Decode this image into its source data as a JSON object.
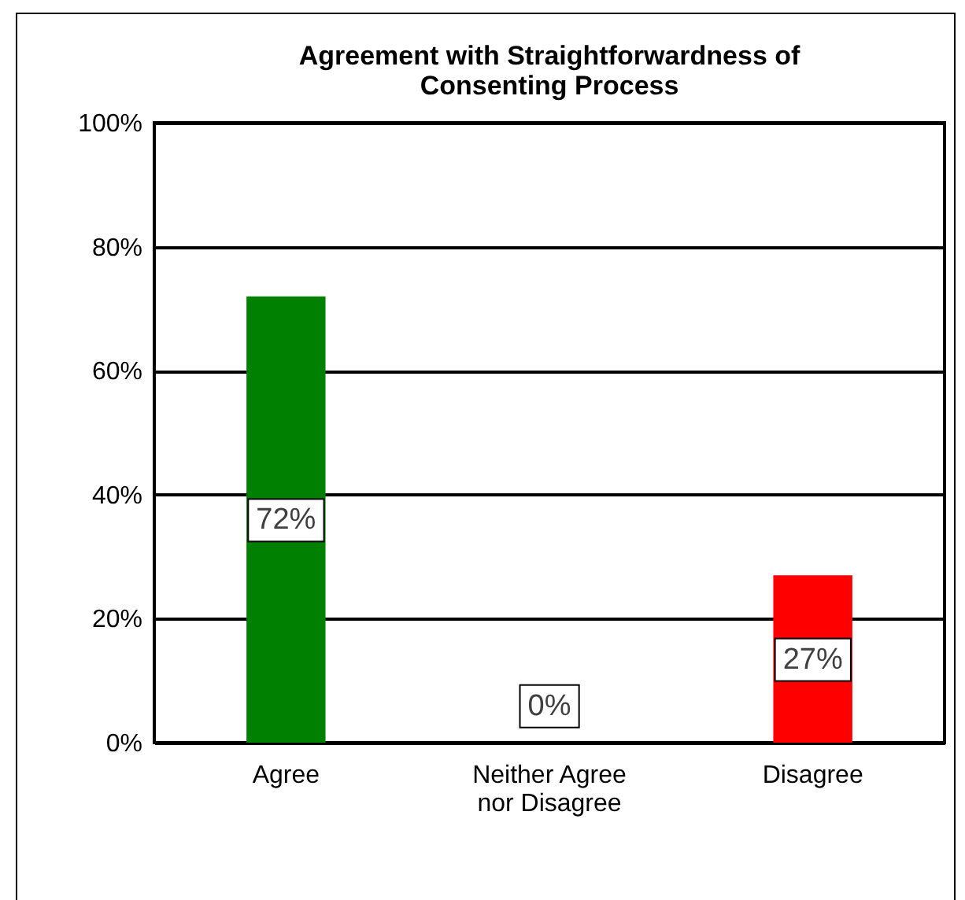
{
  "chart_data": {
    "type": "bar",
    "title": "Agreement with Straightforwardness of Consenting Process",
    "categories": [
      "Agree",
      "Neither Agree nor Disagree",
      "Disagree"
    ],
    "values": [
      72,
      0,
      27
    ],
    "colors": [
      "#008000",
      "#008000",
      "#ff0000"
    ],
    "value_labels": [
      "72%",
      "0%",
      "27%"
    ],
    "ylim": [
      0,
      100
    ],
    "yticks": [
      {
        "value": 0,
        "label": "0%"
      },
      {
        "value": 20,
        "label": "20%"
      },
      {
        "value": 40,
        "label": "40%"
      },
      {
        "value": 60,
        "label": "60%"
      },
      {
        "value": 80,
        "label": "80%"
      },
      {
        "value": 100,
        "label": "100%"
      }
    ],
    "grid": true
  }
}
